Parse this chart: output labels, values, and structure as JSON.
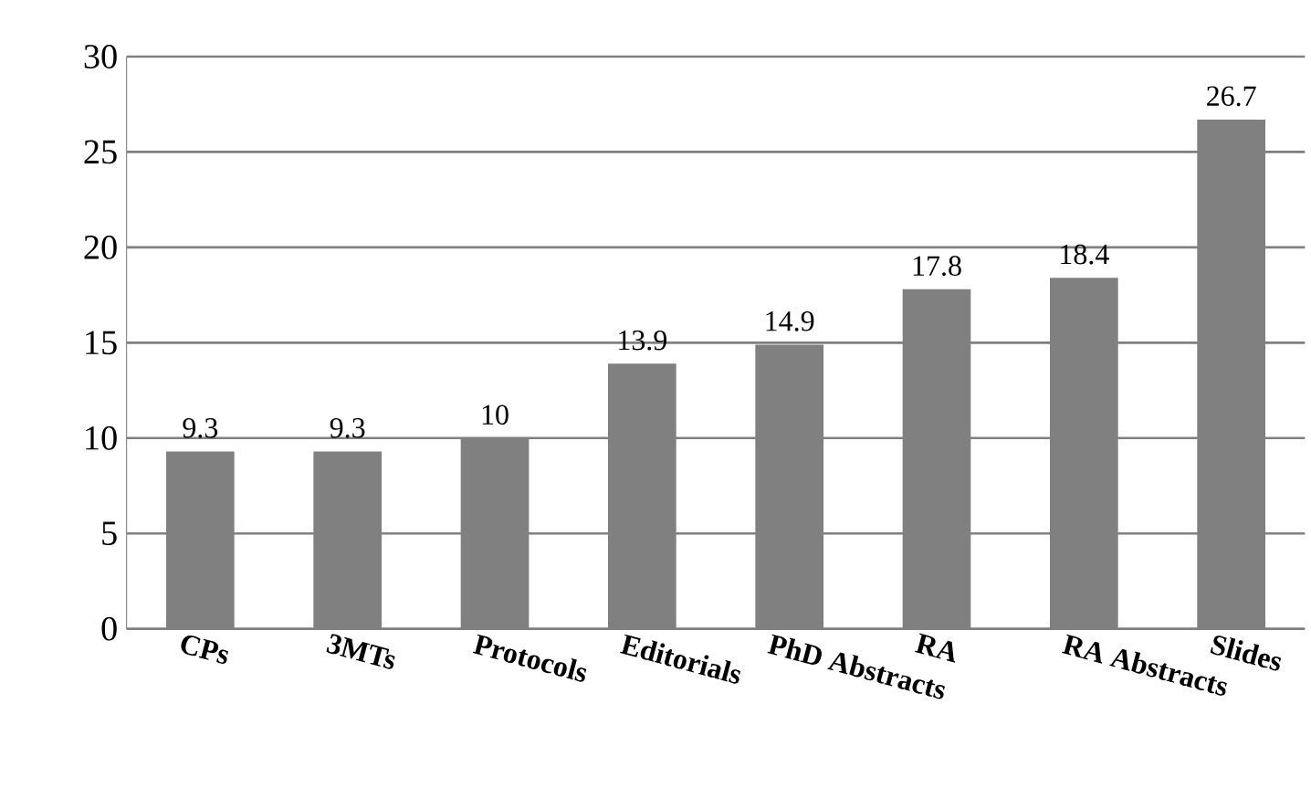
{
  "chart_data": {
    "type": "bar",
    "categories": [
      "CPs",
      "3MTs",
      "Protocols",
      "Editorials",
      "PhD Abstracts",
      "RA",
      "RA Abstracts",
      "Slides"
    ],
    "values": [
      9.3,
      9.3,
      10,
      13.9,
      14.9,
      17.8,
      18.4,
      26.7
    ],
    "color": "#808080",
    "ylim": [
      0,
      30
    ],
    "yticks": [
      0,
      5,
      10,
      15,
      20,
      25,
      30
    ],
    "grid": "y",
    "data_labels": true
  }
}
